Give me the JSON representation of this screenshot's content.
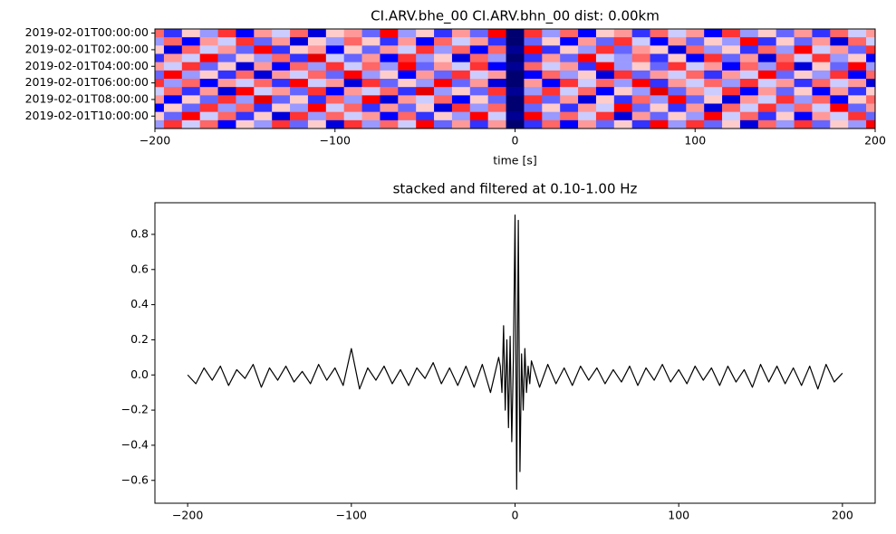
{
  "chart_data": [
    {
      "type": "heatmap",
      "title": "CI.ARV.bhe_00 CI.ARV.bhn_00  dist: 0.00km",
      "xlabel": "time [s]",
      "x": [
        -200,
        -190,
        -180,
        -170,
        -160,
        -150,
        -140,
        -130,
        -120,
        -110,
        -100,
        -90,
        -80,
        -70,
        -60,
        -50,
        -40,
        -30,
        -20,
        -10,
        0,
        10,
        20,
        30,
        40,
        50,
        60,
        70,
        80,
        90,
        100,
        110,
        120,
        130,
        140,
        150,
        160,
        170,
        180,
        190,
        200
      ],
      "categories": [
        "2019-02-01T00:00:00",
        null,
        "2019-02-01T02:00:00",
        null,
        "2019-02-01T04:00:00",
        null,
        "2019-02-01T06:00:00",
        null,
        "2019-02-01T08:00:00",
        null,
        "2019-02-01T10:00:00",
        null
      ],
      "z": [
        [
          0.3,
          -0.4,
          0.1,
          -0.2,
          0.4,
          -0.5,
          0.2,
          -0.1,
          0.3,
          -0.6,
          0.1,
          0.2,
          -0.3,
          0.5,
          -0.2,
          0.1,
          -0.4,
          0.2,
          -0.3,
          0.5,
          -0.9,
          0.4,
          -0.2,
          0.3,
          -0.5,
          0.1,
          0.2,
          -0.4,
          0.3,
          -0.1,
          0.2,
          -0.5,
          0.4,
          -0.2,
          0.1,
          -0.3,
          0.2,
          -0.4,
          0.3,
          -0.1,
          0.2
        ],
        [
          -0.2,
          0.3,
          -0.5,
          0.2,
          -0.1,
          0.4,
          -0.3,
          0.2,
          -0.6,
          0.1,
          -0.2,
          0.3,
          0.1,
          -0.4,
          0.2,
          -0.5,
          0.3,
          -0.1,
          0.2,
          -0.4,
          -0.9,
          -0.3,
          0.1,
          -0.5,
          0.2,
          -0.3,
          0.4,
          -0.1,
          -0.5,
          0.2,
          -0.3,
          0.1,
          -0.2,
          0.5,
          -0.4,
          0.1,
          -0.3,
          0.2,
          -0.6,
          0.3,
          -0.1
        ],
        [
          0.1,
          -0.6,
          0.3,
          -0.1,
          0.2,
          -0.3,
          0.5,
          -0.4,
          0.1,
          0.2,
          -0.5,
          0.1,
          -0.3,
          0.2,
          -0.1,
          0.4,
          -0.2,
          0.3,
          -0.5,
          0.3,
          -0.8,
          0.5,
          -0.4,
          0.1,
          -0.2,
          0.4,
          -0.3,
          0.2,
          0.1,
          -0.6,
          0.3,
          -0.2,
          0.1,
          -0.4,
          0.3,
          -0.2,
          0.5,
          -0.1,
          0.2,
          -0.3,
          0.4
        ],
        [
          -0.4,
          0.2,
          -0.1,
          0.5,
          -0.3,
          0.1,
          -0.2,
          0.3,
          -0.4,
          0.6,
          -0.1,
          -0.3,
          0.2,
          -0.5,
          0.4,
          -0.2,
          0.1,
          -0.6,
          0.3,
          -0.2,
          -0.9,
          -0.4,
          0.2,
          -0.3,
          0.5,
          -0.1,
          -0.2,
          0.3,
          -0.4,
          0.1,
          -0.5,
          0.4,
          -0.3,
          0.2,
          -0.6,
          0.3,
          -0.1,
          0.4,
          -0.2,
          0.1,
          -0.5
        ],
        [
          0.2,
          -0.1,
          0.4,
          -0.3,
          0.1,
          -0.6,
          0.2,
          -0.5,
          0.3,
          -0.2,
          0.4,
          -0.1,
          0.3,
          -0.2,
          0.5,
          -0.3,
          0.2,
          -0.1,
          0.4,
          -0.5,
          -0.8,
          0.3,
          -0.1,
          0.2,
          -0.4,
          0.5,
          -0.2,
          0.1,
          -0.3,
          0.4,
          -0.1,
          0.2,
          -0.5,
          0.3,
          -0.2,
          0.4,
          -0.6,
          0.1,
          -0.3,
          0.5,
          -0.2
        ],
        [
          -0.3,
          0.5,
          -0.2,
          0.1,
          -0.4,
          0.3,
          -0.6,
          0.2,
          -0.1,
          0.3,
          -0.3,
          0.5,
          -0.2,
          0.1,
          -0.5,
          0.2,
          -0.3,
          0.4,
          -0.1,
          0.2,
          -0.9,
          -0.5,
          0.3,
          -0.2,
          0.1,
          -0.6,
          0.4,
          -0.3,
          0.2,
          -0.1,
          0.3,
          -0.4,
          0.2,
          -0.1,
          0.5,
          -0.3,
          0.1,
          -0.2,
          0.4,
          -0.5,
          0.3
        ],
        [
          0.4,
          -0.2,
          0.3,
          -0.5,
          0.2,
          -0.1,
          0.3,
          -0.4,
          0.5,
          -0.1,
          0.2,
          -0.6,
          0.4,
          -0.3,
          0.1,
          -0.2,
          0.5,
          -0.3,
          0.2,
          -0.6,
          -0.9,
          0.2,
          -0.5,
          0.4,
          -0.1,
          0.3,
          -0.2,
          0.5,
          -0.4,
          0.2,
          -0.1,
          0.3,
          -0.2,
          0.4,
          -0.1,
          0.2,
          -0.4,
          0.3,
          -0.1,
          0.2,
          -0.6
        ],
        [
          -0.1,
          0.3,
          -0.4,
          0.2,
          -0.6,
          0.5,
          -0.1,
          0.2,
          -0.3,
          0.4,
          -0.5,
          0.2,
          -0.1,
          0.3,
          -0.4,
          0.6,
          -0.2,
          0.1,
          -0.3,
          0.4,
          -0.8,
          -0.2,
          0.4,
          -0.1,
          0.3,
          -0.5,
          0.1,
          -0.2,
          0.6,
          -0.3,
          0.2,
          -0.1,
          0.4,
          -0.5,
          0.2,
          -0.3,
          0.1,
          -0.5,
          0.2,
          -0.4,
          0.1
        ],
        [
          0.2,
          -0.5,
          0.1,
          -0.3,
          0.4,
          -0.2,
          0.6,
          -0.3,
          0.1,
          -0.4,
          0.3,
          -0.2,
          0.5,
          -0.6,
          0.2,
          -0.1,
          0.3,
          -0.5,
          0.1,
          -0.3,
          -0.9,
          0.4,
          -0.3,
          0.2,
          -0.6,
          0.1,
          -0.4,
          0.3,
          -0.2,
          0.5,
          -0.3,
          0.1,
          -0.6,
          0.2,
          -0.1,
          0.4,
          -0.2,
          0.3,
          -0.5,
          0.1,
          0.3
        ],
        [
          -0.5,
          0.1,
          -0.3,
          0.4,
          -0.2,
          0.3,
          -0.4,
          0.1,
          -0.2,
          0.5,
          -0.1,
          0.3,
          -0.4,
          0.2,
          -0.3,
          0.1,
          -0.6,
          0.4,
          -0.2,
          0.3,
          -0.9,
          -0.3,
          0.1,
          -0.4,
          0.2,
          -0.1,
          0.5,
          -0.3,
          0.1,
          -0.4,
          0.2,
          -0.6,
          0.3,
          -0.1,
          0.4,
          -0.2,
          0.3,
          -0.1,
          0.5,
          -0.3,
          0.2
        ],
        [
          0.1,
          -0.3,
          0.5,
          -0.1,
          0.3,
          -0.4,
          0.1,
          -0.6,
          0.4,
          -0.2,
          0.3,
          -0.1,
          0.2,
          -0.5,
          0.3,
          -0.4,
          0.1,
          -0.2,
          0.5,
          -0.1,
          -0.8,
          0.5,
          -0.2,
          0.3,
          -0.1,
          0.4,
          -0.6,
          0.2,
          -0.3,
          0.1,
          -0.2,
          0.5,
          -0.1,
          0.3,
          -0.4,
          0.1,
          -0.5,
          0.2,
          -0.1,
          0.4,
          -0.3
        ],
        [
          -0.2,
          0.4,
          -0.1,
          0.3,
          -0.5,
          0.1,
          -0.2,
          0.4,
          -0.3,
          0.1,
          -0.6,
          0.4,
          -0.2,
          0.3,
          -0.1,
          0.5,
          -0.3,
          0.2,
          -0.4,
          0.2,
          -0.9,
          -0.4,
          0.3,
          -0.5,
          0.2,
          -0.3,
          0.1,
          -0.4,
          0.5,
          -0.2,
          0.4,
          -0.3,
          0.1,
          -0.6,
          0.3,
          -0.2,
          0.4,
          -0.3,
          0.1,
          -0.2,
          0.5
        ]
      ],
      "xlim": [
        -200,
        200
      ],
      "xticks": [
        {
          "value": -200,
          "label": "−200"
        },
        {
          "value": -100,
          "label": "−100"
        },
        0,
        100,
        200
      ],
      "colormap": [
        "#00004c",
        "#0000ff",
        "#ffffff",
        "#ff0000",
        "#7f0000"
      ],
      "clim": [
        -1,
        1
      ]
    },
    {
      "type": "line",
      "title": "stacked and filtered at 0.10-1.00 Hz",
      "color": "#000000",
      "x": [
        -200,
        -195,
        -190,
        -185,
        -180,
        -175,
        -170,
        -165,
        -160,
        -155,
        -150,
        -145,
        -140,
        -135,
        -130,
        -125,
        -120,
        -115,
        -110,
        -105,
        -100,
        -95,
        -90,
        -85,
        -80,
        -75,
        -70,
        -65,
        -60,
        -55,
        -50,
        -45,
        -40,
        -35,
        -30,
        -25,
        -20,
        -15,
        -10,
        -9,
        -8,
        -7,
        -6,
        -5,
        -4,
        -3,
        -2,
        -1,
        0,
        1,
        2,
        3,
        4,
        5,
        6,
        7,
        8,
        9,
        10,
        15,
        20,
        25,
        30,
        35,
        40,
        45,
        50,
        55,
        60,
        65,
        70,
        75,
        80,
        85,
        90,
        95,
        100,
        105,
        110,
        115,
        120,
        125,
        130,
        135,
        140,
        145,
        150,
        155,
        160,
        165,
        170,
        175,
        180,
        185,
        190,
        195,
        200
      ],
      "values": [
        0.0,
        -0.05,
        0.04,
        -0.03,
        0.05,
        -0.06,
        0.03,
        -0.02,
        0.06,
        -0.07,
        0.04,
        -0.03,
        0.05,
        -0.04,
        0.02,
        -0.05,
        0.06,
        -0.03,
        0.04,
        -0.06,
        0.15,
        -0.08,
        0.04,
        -0.03,
        0.05,
        -0.05,
        0.03,
        -0.06,
        0.04,
        -0.02,
        0.07,
        -0.05,
        0.04,
        -0.06,
        0.05,
        -0.07,
        0.06,
        -0.1,
        0.1,
        0.05,
        -0.1,
        0.28,
        -0.2,
        0.2,
        -0.3,
        0.22,
        -0.38,
        0.1,
        0.91,
        -0.65,
        0.88,
        -0.55,
        0.12,
        -0.2,
        0.15,
        -0.1,
        0.05,
        -0.05,
        0.08,
        -0.07,
        0.06,
        -0.05,
        0.04,
        -0.06,
        0.05,
        -0.03,
        0.04,
        -0.05,
        0.03,
        -0.04,
        0.05,
        -0.06,
        0.04,
        -0.03,
        0.06,
        -0.04,
        0.03,
        -0.05,
        0.05,
        -0.03,
        0.04,
        -0.06,
        0.05,
        -0.04,
        0.03,
        -0.07,
        0.06,
        -0.04,
        0.05,
        -0.05,
        0.04,
        -0.06,
        0.05,
        -0.08,
        0.06,
        -0.04,
        0.01
      ],
      "xlim": [
        -220,
        220
      ],
      "xticks": [
        {
          "value": -200,
          "label": "−200"
        },
        {
          "value": -100,
          "label": "−100"
        },
        0,
        100,
        200
      ],
      "ylim": [
        -0.73,
        0.98
      ],
      "yticks": [
        {
          "value": -0.6,
          "label": "−0.6"
        },
        {
          "value": -0.4,
          "label": "−0.4"
        },
        {
          "value": -0.2,
          "label": "−0.2"
        },
        {
          "value": 0,
          "label": "0.0"
        },
        0.2,
        0.4,
        0.6,
        0.8
      ]
    }
  ]
}
